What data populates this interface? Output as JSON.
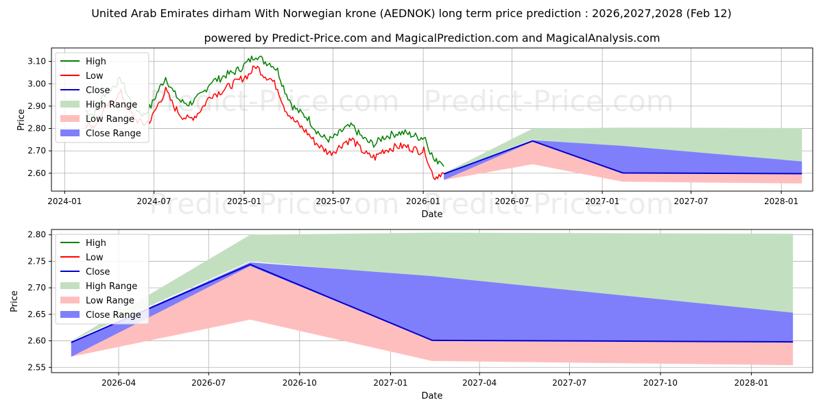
{
  "title": "United Arab Emirates dirham With Norwegian krone (AEDNOK) long term price prediction : 2026,2027,2028 (Feb 12)",
  "subtitle": "powered by Predict-Price.com and MagicalPrediction.com and MagicalAnalysis.com",
  "watermark": "Predict-Price.com",
  "colors": {
    "high": "#008000",
    "low": "#ff0000",
    "close": "#0000cc",
    "high_range": "#c2e0c0",
    "low_range": "#ffbebe",
    "close_range": "#7f7ffc",
    "grid": "#b0b0b0"
  },
  "chart_data": [
    {
      "type": "line",
      "name": "full-history",
      "xlabel": "Date",
      "ylabel": "Price",
      "grid": true,
      "legend": "top-left",
      "xlim": [
        "2023-12-05",
        "2028-03-05"
      ],
      "ylim": [
        2.52,
        3.16
      ],
      "x_ticks": [
        {
          "date": "2024-01-01",
          "label": "2024-01"
        },
        {
          "date": "2024-07-01",
          "label": "2024-07"
        },
        {
          "date": "2025-01-01",
          "label": "2025-01"
        },
        {
          "date": "2025-07-01",
          "label": "2025-07"
        },
        {
          "date": "2026-01-01",
          "label": "2026-01"
        },
        {
          "date": "2026-07-01",
          "label": "2026-07"
        },
        {
          "date": "2027-01-01",
          "label": "2027-01"
        },
        {
          "date": "2027-07-01",
          "label": "2027-07"
        },
        {
          "date": "2028-01-01",
          "label": "2028-01"
        }
      ],
      "y_ticks": [
        2.6,
        2.7,
        2.8,
        2.9,
        3.0,
        3.1
      ],
      "legend_items": [
        "High",
        "Low",
        "Close",
        "High Range",
        "Low Range",
        "Close Range"
      ],
      "history": {
        "dates": [
          "2024-02-12",
          "2024-03-01",
          "2024-03-20",
          "2024-04-10",
          "2024-04-25",
          "2024-05-10",
          "2024-05-25",
          "2024-06-10",
          "2024-06-25",
          "2024-07-10",
          "2024-07-25",
          "2024-08-10",
          "2024-08-25",
          "2024-09-10",
          "2024-09-25",
          "2024-10-10",
          "2024-10-25",
          "2024-11-10",
          "2024-11-25",
          "2024-12-10",
          "2024-12-25",
          "2025-01-10",
          "2025-01-25",
          "2025-02-10",
          "2025-02-25",
          "2025-03-10",
          "2025-03-25",
          "2025-04-10",
          "2025-04-25",
          "2025-05-10",
          "2025-05-25",
          "2025-06-10",
          "2025-06-25",
          "2025-07-10",
          "2025-07-25",
          "2025-08-10",
          "2025-08-25",
          "2025-09-10",
          "2025-09-25",
          "2025-10-10",
          "2025-10-25",
          "2025-11-10",
          "2025-11-25",
          "2025-12-10",
          "2025-12-25",
          "2026-01-05",
          "2026-01-15",
          "2026-01-25",
          "2026-02-05",
          "2026-02-12"
        ],
        "high": [
          2.88,
          2.86,
          2.95,
          2.99,
          3.02,
          2.94,
          2.89,
          2.86,
          2.9,
          2.97,
          3.03,
          2.96,
          2.92,
          2.91,
          2.93,
          2.96,
          3.01,
          3.02,
          3.04,
          3.05,
          3.07,
          3.1,
          3.13,
          3.1,
          3.09,
          3.06,
          2.97,
          2.9,
          2.87,
          2.85,
          2.8,
          2.76,
          2.75,
          2.77,
          2.8,
          2.81,
          2.77,
          2.74,
          2.73,
          2.76,
          2.77,
          2.78,
          2.78,
          2.77,
          2.76,
          2.76,
          2.7,
          2.65,
          2.66,
          2.63
        ],
        "low": [
          2.82,
          2.81,
          2.88,
          2.93,
          2.96,
          2.88,
          2.84,
          2.82,
          2.84,
          2.91,
          2.97,
          2.9,
          2.86,
          2.84,
          2.86,
          2.9,
          2.95,
          2.96,
          2.98,
          3.0,
          3.02,
          3.04,
          3.08,
          3.04,
          3.02,
          2.98,
          2.89,
          2.84,
          2.81,
          2.78,
          2.74,
          2.71,
          2.69,
          2.71,
          2.74,
          2.75,
          2.71,
          2.68,
          2.67,
          2.7,
          2.71,
          2.72,
          2.72,
          2.71,
          2.7,
          2.7,
          2.62,
          2.58,
          2.6,
          2.6
        ]
      },
      "forecast": {
        "dates": [
          "2026-02-12",
          "2026-08-12",
          "2027-02-12",
          "2028-02-12"
        ],
        "close": [
          2.597,
          2.744,
          2.601,
          2.598
        ],
        "high_range_dates": [
          "2026-02-12",
          "2026-08-12",
          "2027-02-12",
          "2028-02-12"
        ],
        "high_range_upper": [
          2.6,
          2.8,
          2.804,
          2.802
        ],
        "high_range_lower": [
          2.6,
          2.75,
          2.72,
          2.653
        ],
        "low_range_upper": [
          2.597,
          2.744,
          2.601,
          2.598
        ],
        "low_range_lower": [
          2.57,
          2.64,
          2.562,
          2.554
        ],
        "close_range_upper": [
          2.597,
          2.748,
          2.722,
          2.653
        ],
        "close_range_lower": [
          2.57,
          2.741,
          2.601,
          2.598
        ]
      }
    },
    {
      "type": "line",
      "name": "forecast-zoom",
      "xlabel": "Date",
      "ylabel": "Price",
      "grid": true,
      "legend": "top-left",
      "xlim": [
        "2026-01-23",
        "2028-03-03"
      ],
      "ylim": [
        2.54,
        2.81
      ],
      "x_ticks": [
        {
          "date": "2026-04-01",
          "label": "2026-04"
        },
        {
          "date": "2026-07-01",
          "label": "2026-07"
        },
        {
          "date": "2026-10-01",
          "label": "2026-10"
        },
        {
          "date": "2027-01-01",
          "label": "2027-01"
        },
        {
          "date": "2027-04-01",
          "label": "2027-04"
        },
        {
          "date": "2027-07-01",
          "label": "2027-07"
        },
        {
          "date": "2027-10-01",
          "label": "2027-10"
        },
        {
          "date": "2028-01-01",
          "label": "2028-01"
        }
      ],
      "y_ticks": [
        2.55,
        2.6,
        2.65,
        2.7,
        2.75,
        2.8
      ],
      "legend_items": [
        "High",
        "Low",
        "Close",
        "High Range",
        "Low Range",
        "Close Range"
      ]
    }
  ]
}
